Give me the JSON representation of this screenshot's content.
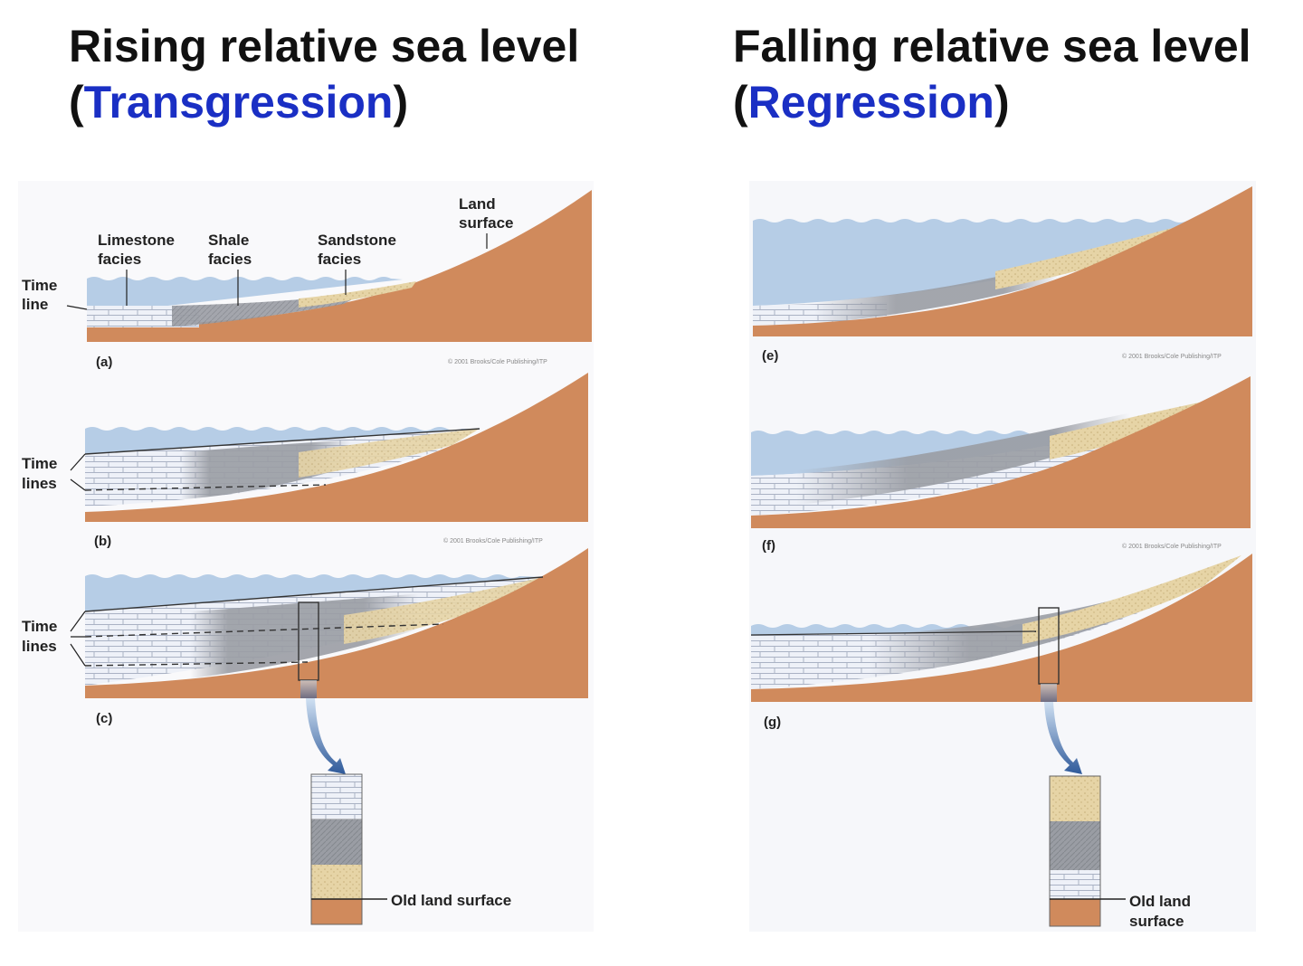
{
  "headings": {
    "left": {
      "line1": "Rising relative sea level",
      "open": "(",
      "accent": "Transgression",
      "close": ")"
    },
    "right": {
      "line1": "Falling relative sea level",
      "open": "(",
      "accent": "Regression",
      "close": ")"
    }
  },
  "panels": {
    "a": {
      "letter": "(a)",
      "credit": "© 2001 Brooks/Cole Publishing/ITP"
    },
    "b": {
      "letter": "(b)",
      "credit": "© 2001 Brooks/Cole Publishing/ITP"
    },
    "c": {
      "letter": "(c)"
    },
    "e": {
      "letter": "(e)",
      "credit": "© 2001 Brooks/Cole Publishing/ITP"
    },
    "f": {
      "letter": "(f)",
      "credit": "© 2001 Brooks/Cole Publishing/ITP"
    },
    "g": {
      "letter": "(g)"
    }
  },
  "labels": {
    "land_surface": [
      "Land",
      "surface"
    ],
    "limestone_facies": [
      "Limestone",
      "facies"
    ],
    "shale_facies": [
      "Shale",
      "facies"
    ],
    "sandstone_facies": [
      "Sandstone",
      "facies"
    ],
    "time_line": [
      "Time",
      "line"
    ],
    "time_lines": [
      "Time",
      "lines"
    ],
    "old_land_surface_left": "Old land surface",
    "old_land_surface_right": [
      "Old land",
      "surface"
    ]
  },
  "colors": {
    "accent_text": "#1a2fc4",
    "water": "#b6cde6",
    "land": "#d08a5c",
    "limestone": "#eef1f8",
    "shale": "#9a9da4",
    "sandstone": "#e6d4a6"
  }
}
